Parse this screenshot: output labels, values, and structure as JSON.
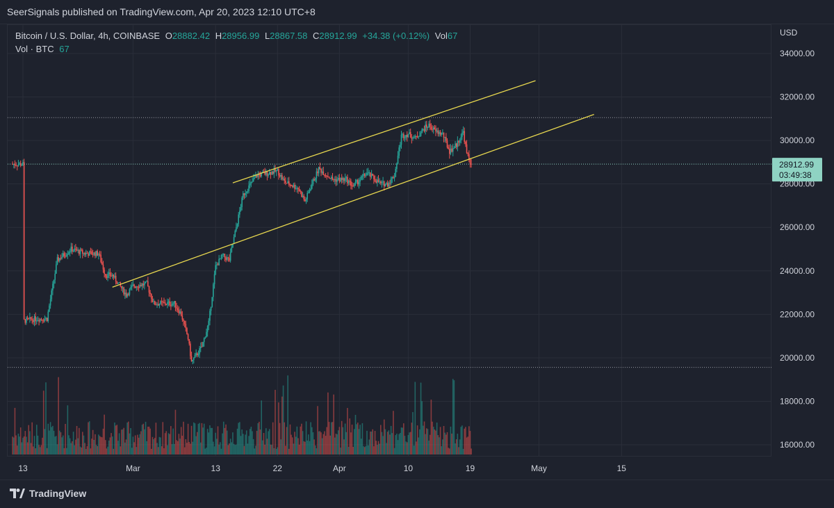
{
  "header": {
    "text": "SeerSignals published on TradingView.com, Apr 20, 2023 12:10 UTC+8"
  },
  "legend": {
    "symbol": "Bitcoin / U.S. Dollar, 4h, COINBASE",
    "o_label": "O",
    "o_value": "28882.42",
    "h_label": "H",
    "h_value": "28956.99",
    "l_label": "L",
    "l_value": "28867.58",
    "c_label": "C",
    "c_value": "28912.99",
    "change": "+34.38 (+0.12%)",
    "vol_label": "Vol",
    "vol_value": "67",
    "vol2_label": "Vol · BTC",
    "vol2_value": "67"
  },
  "price_axis": {
    "currency": "USD"
  },
  "last_price": {
    "value": "28912.99",
    "countdown": "03:49:38"
  },
  "footer": {
    "brand": "TradingView"
  },
  "colors": {
    "up": "#26a69a",
    "down": "#ef5350",
    "trendline": "#e8d84f",
    "tag": "#8fd3c3"
  },
  "chart_data": {
    "type": "candlestick",
    "y_ticks": [
      "34000.00",
      "32000.00",
      "30000.00",
      "28000.00",
      "26000.00",
      "24000.00",
      "22000.00",
      "20000.00",
      "18000.00",
      "16000.00"
    ],
    "y_tick_values": [
      34000,
      32000,
      30000,
      28000,
      26000,
      24000,
      22000,
      20000,
      18000,
      16000
    ],
    "ylim": [
      15500,
      35000
    ],
    "x_ticks": [
      "13",
      "Mar",
      "13",
      "22",
      "Apr",
      "10",
      "19",
      "May",
      "15"
    ],
    "x_tick_days": [
      0,
      16,
      28,
      37,
      46,
      56,
      65,
      75,
      87
    ],
    "x_range_days": [
      -1.5,
      92
    ],
    "anchors": [
      [
        0,
        21700
      ],
      [
        2,
        21800
      ],
      [
        3.5,
        21800
      ],
      [
        5,
        24500
      ],
      [
        7,
        25000
      ],
      [
        9,
        24800
      ],
      [
        11,
        24800
      ],
      [
        12,
        23800
      ],
      [
        13,
        23800
      ],
      [
        15,
        22900
      ],
      [
        16,
        23300
      ],
      [
        18,
        23400
      ],
      [
        19,
        22500
      ],
      [
        22,
        22500
      ],
      [
        23,
        22000
      ],
      [
        24,
        20900
      ],
      [
        24.5,
        19800
      ],
      [
        26,
        20500
      ],
      [
        27,
        21600
      ],
      [
        28,
        24200
      ],
      [
        29,
        24700
      ],
      [
        30,
        24500
      ],
      [
        31,
        26000
      ],
      [
        32,
        27500
      ],
      [
        34,
        28400
      ],
      [
        35.5,
        28500
      ],
      [
        37,
        28600
      ],
      [
        38,
        28100
      ],
      [
        40,
        27800
      ],
      [
        41,
        27200
      ],
      [
        42,
        28000
      ],
      [
        43,
        28700
      ],
      [
        45,
        28200
      ],
      [
        47,
        28200
      ],
      [
        48,
        27900
      ],
      [
        50,
        28500
      ],
      [
        52,
        28000
      ],
      [
        53,
        28000
      ],
      [
        54,
        28400
      ],
      [
        55,
        30200
      ],
      [
        56,
        30300
      ],
      [
        57,
        30100
      ],
      [
        58.5,
        30600
      ],
      [
        59,
        30700
      ],
      [
        60,
        30400
      ],
      [
        61,
        30300
      ],
      [
        62,
        29500
      ],
      [
        63,
        29800
      ],
      [
        64,
        30400
      ],
      [
        64.5,
        29400
      ],
      [
        65,
        29000
      ],
      [
        65.3,
        28913
      ]
    ],
    "horizontal_lines": [
      31050,
      28912.99,
      19560
    ],
    "trendlines": [
      {
        "name": "channel-upper",
        "from": [
          30.5,
          28050
        ],
        "to": [
          74.5,
          32750
        ]
      },
      {
        "name": "channel-lower",
        "from": [
          13,
          23250
        ],
        "to": [
          83,
          31200
        ]
      }
    ],
    "volume_scale_max": 20000
  }
}
